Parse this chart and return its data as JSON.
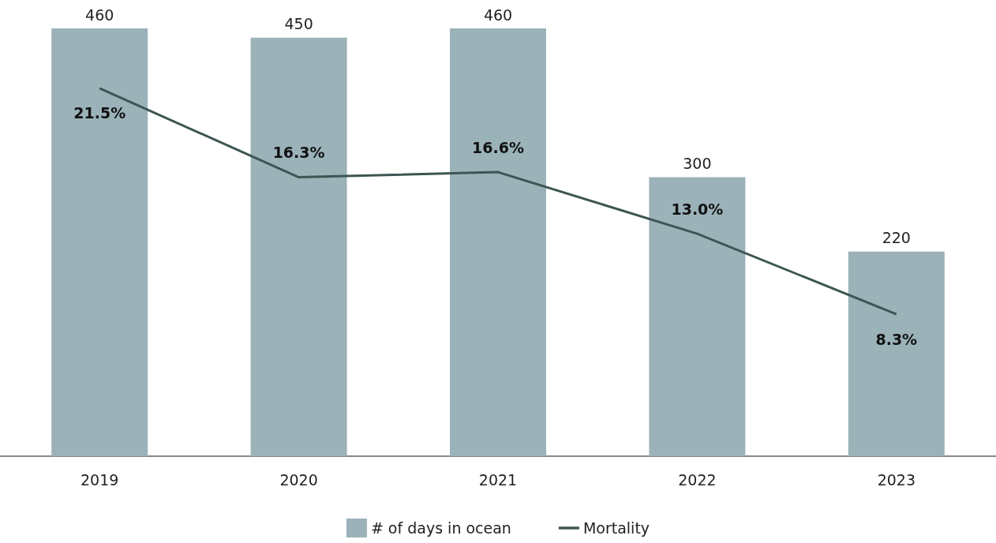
{
  "chart_data": {
    "type": "bar",
    "categories": [
      "2019",
      "2020",
      "2021",
      "2022",
      "2023"
    ],
    "series": [
      {
        "name": "# of days in ocean",
        "color": "#9bb2b9",
        "values": [
          460,
          450,
          460,
          300,
          220
        ],
        "value_labels": [
          "460",
          "450",
          "460",
          "300",
          "220"
        ]
      },
      {
        "name": "Mortality",
        "type": "line",
        "axis": "y2",
        "color": "#3d5553",
        "values": [
          21.5,
          16.3,
          16.6,
          13.0,
          8.3
        ],
        "value_labels": [
          "21.5%",
          "16.3%",
          "16.6%",
          "13.0%",
          "8.3%"
        ]
      }
    ],
    "grid": false,
    "legend": "bottom",
    "tick_labels": "x"
  }
}
